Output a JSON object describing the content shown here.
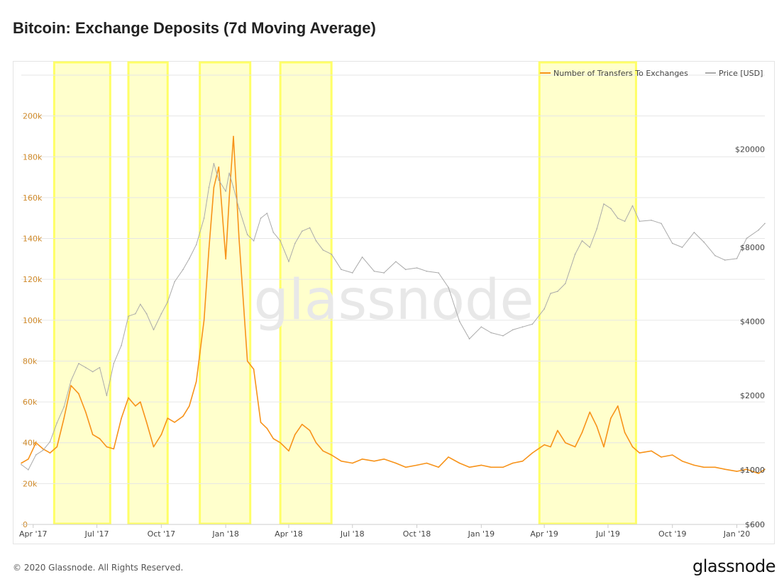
{
  "title": "Bitcoin: Exchange Deposits (7d Moving Average)",
  "footer": "© 2020 Glassnode. All Rights Reserved.",
  "logo": "glassnode",
  "watermark": "glassnode",
  "colors": {
    "transfers": "#f7931a",
    "price": "#aaaaaa",
    "highlight_fill": "#ffffcc",
    "highlight_border": "#ffff66",
    "left_axis_text": "#d08a2a",
    "grid": "#e6e6e6"
  },
  "chart_data": {
    "type": "line",
    "title": "Bitcoin: Exchange Deposits (7d Moving Average)",
    "legend": {
      "position": "top-right",
      "items": [
        {
          "name": "Number of Transfers To Exchanges",
          "color": "#f7931a"
        },
        {
          "name": "Price [USD]",
          "color": "#aaaaaa"
        }
      ]
    },
    "x_ticks": [
      "Apr '17",
      "Jul '17",
      "Oct '17",
      "Jan '18",
      "Apr '18",
      "Jul '18",
      "Oct '18",
      "Jan '19",
      "Apr '19",
      "Jul '19",
      "Oct '19",
      "Jan '20"
    ],
    "x_range": [
      "2017-03-15",
      "2020-02-10"
    ],
    "y_left": {
      "ticks": [
        "0",
        "20k",
        "40k",
        "60k",
        "80k",
        "100k",
        "120k",
        "140k",
        "160k",
        "180k",
        "200k"
      ],
      "ylim": [
        0,
        220000
      ]
    },
    "y_right": {
      "ticks": [
        "$600",
        "$1000",
        "$2000",
        "$4000",
        "$8000",
        "$20000"
      ],
      "ticks_values": [
        600,
        1000,
        2000,
        4000,
        8000,
        20000
      ],
      "scale": "log",
      "ylim": [
        600,
        40000
      ]
    },
    "grid": true,
    "highlights": [
      {
        "start": "2017-05-01",
        "end": "2017-07-20"
      },
      {
        "start": "2017-08-15",
        "end": "2017-10-10"
      },
      {
        "start": "2017-11-25",
        "end": "2018-02-05"
      },
      {
        "start": "2018-03-20",
        "end": "2018-06-01"
      },
      {
        "start": "2019-03-25",
        "end": "2019-08-10"
      }
    ],
    "series": [
      {
        "name": "Number of Transfers To Exchanges",
        "axis": "left",
        "x": [
          "2017-03-15",
          "2017-03-25",
          "2017-04-05",
          "2017-04-15",
          "2017-04-25",
          "2017-05-05",
          "2017-05-15",
          "2017-05-25",
          "2017-06-05",
          "2017-06-15",
          "2017-06-25",
          "2017-07-05",
          "2017-07-15",
          "2017-07-25",
          "2017-08-05",
          "2017-08-15",
          "2017-08-25",
          "2017-09-01",
          "2017-09-10",
          "2017-09-20",
          "2017-10-01",
          "2017-10-10",
          "2017-10-20",
          "2017-11-01",
          "2017-11-10",
          "2017-11-20",
          "2017-12-01",
          "2017-12-08",
          "2017-12-15",
          "2017-12-22",
          "2018-01-01",
          "2018-01-06",
          "2018-01-12",
          "2018-01-20",
          "2018-02-01",
          "2018-02-10",
          "2018-02-20",
          "2018-03-01",
          "2018-03-10",
          "2018-03-20",
          "2018-04-01",
          "2018-04-10",
          "2018-04-20",
          "2018-05-01",
          "2018-05-10",
          "2018-05-20",
          "2018-06-01",
          "2018-06-15",
          "2018-07-01",
          "2018-07-15",
          "2018-08-01",
          "2018-08-15",
          "2018-09-01",
          "2018-09-15",
          "2018-10-01",
          "2018-10-15",
          "2018-11-01",
          "2018-11-15",
          "2018-12-01",
          "2018-12-15",
          "2019-01-01",
          "2019-01-15",
          "2019-02-01",
          "2019-02-15",
          "2019-03-01",
          "2019-03-15",
          "2019-04-01",
          "2019-04-10",
          "2019-04-20",
          "2019-05-01",
          "2019-05-15",
          "2019-05-25",
          "2019-06-05",
          "2019-06-15",
          "2019-06-25",
          "2019-07-05",
          "2019-07-15",
          "2019-07-25",
          "2019-08-05",
          "2019-08-15",
          "2019-09-01",
          "2019-09-15",
          "2019-10-01",
          "2019-10-15",
          "2019-11-01",
          "2019-11-15",
          "2019-12-01",
          "2019-12-15",
          "2020-01-01",
          "2020-01-15",
          "2020-02-01",
          "2020-02-10"
        ],
        "values": [
          30000,
          32000,
          40000,
          37000,
          35000,
          38000,
          52000,
          68000,
          64000,
          55000,
          44000,
          42000,
          38000,
          37000,
          52000,
          62000,
          58000,
          60000,
          50000,
          38000,
          44000,
          52000,
          50000,
          53000,
          58000,
          70000,
          100000,
          135000,
          165000,
          175000,
          130000,
          160000,
          190000,
          140000,
          80000,
          76000,
          50000,
          47000,
          42000,
          40000,
          36000,
          44000,
          49000,
          46000,
          40000,
          36000,
          34000,
          31000,
          30000,
          32000,
          31000,
          32000,
          30000,
          28000,
          29000,
          30000,
          28000,
          33000,
          30000,
          28000,
          29000,
          28000,
          28000,
          30000,
          31000,
          35000,
          39000,
          38000,
          46000,
          40000,
          38000,
          45000,
          55000,
          48000,
          38000,
          52000,
          58000,
          45000,
          38000,
          35000,
          36000,
          33000,
          34000,
          31000,
          29000,
          28000,
          28000,
          27000,
          26000,
          27000,
          25000,
          27000
        ]
      },
      {
        "name": "Price [USD]",
        "axis": "right",
        "x": [
          "2017-03-15",
          "2017-03-25",
          "2017-04-05",
          "2017-04-15",
          "2017-04-25",
          "2017-05-05",
          "2017-05-15",
          "2017-05-25",
          "2017-06-05",
          "2017-06-15",
          "2017-06-25",
          "2017-07-05",
          "2017-07-15",
          "2017-07-25",
          "2017-08-05",
          "2017-08-15",
          "2017-08-25",
          "2017-09-01",
          "2017-09-10",
          "2017-09-20",
          "2017-10-01",
          "2017-10-10",
          "2017-10-20",
          "2017-11-01",
          "2017-11-10",
          "2017-11-20",
          "2017-12-01",
          "2017-12-08",
          "2017-12-15",
          "2017-12-22",
          "2018-01-01",
          "2018-01-06",
          "2018-01-12",
          "2018-01-20",
          "2018-02-01",
          "2018-02-10",
          "2018-02-20",
          "2018-03-01",
          "2018-03-10",
          "2018-03-20",
          "2018-04-01",
          "2018-04-10",
          "2018-04-20",
          "2018-05-01",
          "2018-05-10",
          "2018-05-20",
          "2018-06-01",
          "2018-06-15",
          "2018-07-01",
          "2018-07-15",
          "2018-08-01",
          "2018-08-15",
          "2018-09-01",
          "2018-09-15",
          "2018-10-01",
          "2018-10-15",
          "2018-11-01",
          "2018-11-15",
          "2018-12-01",
          "2018-12-15",
          "2019-01-01",
          "2019-01-15",
          "2019-02-01",
          "2019-02-15",
          "2019-03-01",
          "2019-03-15",
          "2019-04-01",
          "2019-04-10",
          "2019-04-20",
          "2019-05-01",
          "2019-05-15",
          "2019-05-25",
          "2019-06-05",
          "2019-06-15",
          "2019-06-25",
          "2019-07-05",
          "2019-07-15",
          "2019-07-25",
          "2019-08-05",
          "2019-08-15",
          "2019-09-01",
          "2019-09-15",
          "2019-10-01",
          "2019-10-15",
          "2019-11-01",
          "2019-11-15",
          "2019-12-01",
          "2019-12-15",
          "2020-01-01",
          "2020-01-15",
          "2020-02-01",
          "2020-02-10"
        ],
        "values": [
          1050,
          1000,
          1150,
          1200,
          1300,
          1550,
          1800,
          2300,
          2700,
          2600,
          2500,
          2600,
          2000,
          2700,
          3200,
          4200,
          4300,
          4700,
          4300,
          3700,
          4300,
          4800,
          5800,
          6500,
          7200,
          8200,
          10500,
          14000,
          17500,
          15000,
          13500,
          16000,
          14000,
          11500,
          9000,
          8500,
          10500,
          11000,
          9200,
          8500,
          7000,
          8300,
          9300,
          9600,
          8500,
          7800,
          7500,
          6500,
          6300,
          7300,
          6400,
          6300,
          7000,
          6500,
          6600,
          6400,
          6300,
          5500,
          4000,
          3400,
          3800,
          3600,
          3500,
          3700,
          3800,
          3900,
          4500,
          5200,
          5300,
          5700,
          7500,
          8500,
          8000,
          9500,
          12000,
          11500,
          10500,
          10200,
          11800,
          10200,
          10300,
          10000,
          8300,
          8000,
          9200,
          8400,
          7400,
          7100,
          7200,
          8700,
          9400,
          10000
        ]
      }
    ]
  }
}
